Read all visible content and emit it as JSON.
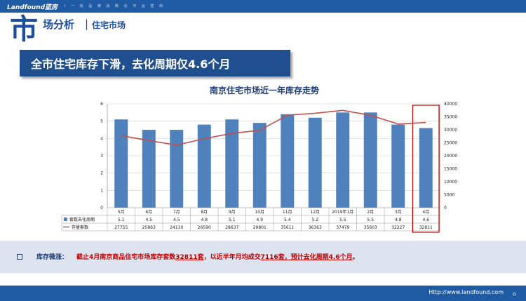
{
  "header": {
    "brand": "Landfound蓝房",
    "slogan": "I 一 线 品 牌 战 略 合 作 运 营 商",
    "big_char": "市",
    "section_title": "场分析",
    "divider": "|",
    "section_sub": "住宅市场"
  },
  "headline": "全市住宅库存下滑，去化周期仅4.6个月",
  "chart_data": {
    "type": "bar+line",
    "title": "南京住宅市场近一年库存走势",
    "categories": [
      "5月",
      "6月",
      "7月",
      "8月",
      "9月",
      "10月",
      "11月",
      "12月",
      "2019年1月",
      "2月",
      "3月",
      "4月"
    ],
    "series": [
      {
        "name": "套数去化周期",
        "type": "bar",
        "axis": "left",
        "color": "#4f81bd",
        "values": [
          5.1,
          4.5,
          4.5,
          4.8,
          5.1,
          4.9,
          5.4,
          5.2,
          5.5,
          5.5,
          4.8,
          4.6
        ]
      },
      {
        "name": "存量套数",
        "type": "line",
        "axis": "right",
        "color": "#c0504d",
        "values": [
          27755,
          25863,
          24110,
          26590,
          28637,
          29801,
          35611,
          36363,
          37479,
          35603,
          32227,
          32811
        ]
      }
    ],
    "ylim_left": [
      0,
      6
    ],
    "yticks_left": [
      "0",
      "1",
      "2",
      "3",
      "4",
      "5",
      "6"
    ],
    "ylim_right": [
      0,
      40000
    ],
    "yticks_right": [
      "0",
      "5000",
      "10000",
      "15000",
      "20000",
      "25000",
      "30000",
      "35000",
      "40000"
    ],
    "highlight_category": "4月",
    "highlight_color": "#c00000"
  },
  "footnote": {
    "label": "库存微涨：",
    "text_pre": "截止4月南京商品住宅市场库存套数",
    "num_stock": "32811套",
    "text_mid": "，以近半年月均成交",
    "num_deal": "7116套",
    "text_post": "，预计去化周期4.6个月",
    "dot": "。"
  },
  "footer": {
    "site": "Http://www.landfound.com",
    "icon": "⌂"
  }
}
